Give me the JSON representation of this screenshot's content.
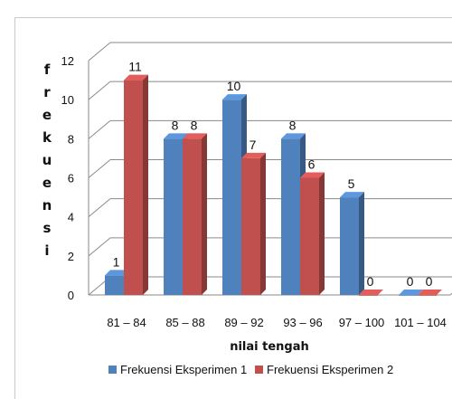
{
  "chart_data": {
    "type": "bar",
    "three_d": true,
    "categories": [
      "81 – 84",
      "85 – 88",
      "89 – 92",
      "93 – 96",
      "97 – 100",
      "101 – 104"
    ],
    "series": [
      {
        "name": "Frekuensi Eksperimen 1",
        "values": [
          1,
          8,
          10,
          8,
          5,
          0
        ],
        "color": "#4f81bd"
      },
      {
        "name": "Frekuensi Eksperimen 2",
        "values": [
          11,
          8,
          7,
          6,
          0,
          0
        ],
        "color": "#c0504d"
      }
    ],
    "xlabel": "nilai tengah",
    "ylabel": "frekuensi",
    "ylim": [
      0,
      12
    ],
    "yticks": [
      "0",
      "2",
      "4",
      "6",
      "8",
      "10",
      "12"
    ],
    "grid": true,
    "legend_position": "bottom"
  }
}
